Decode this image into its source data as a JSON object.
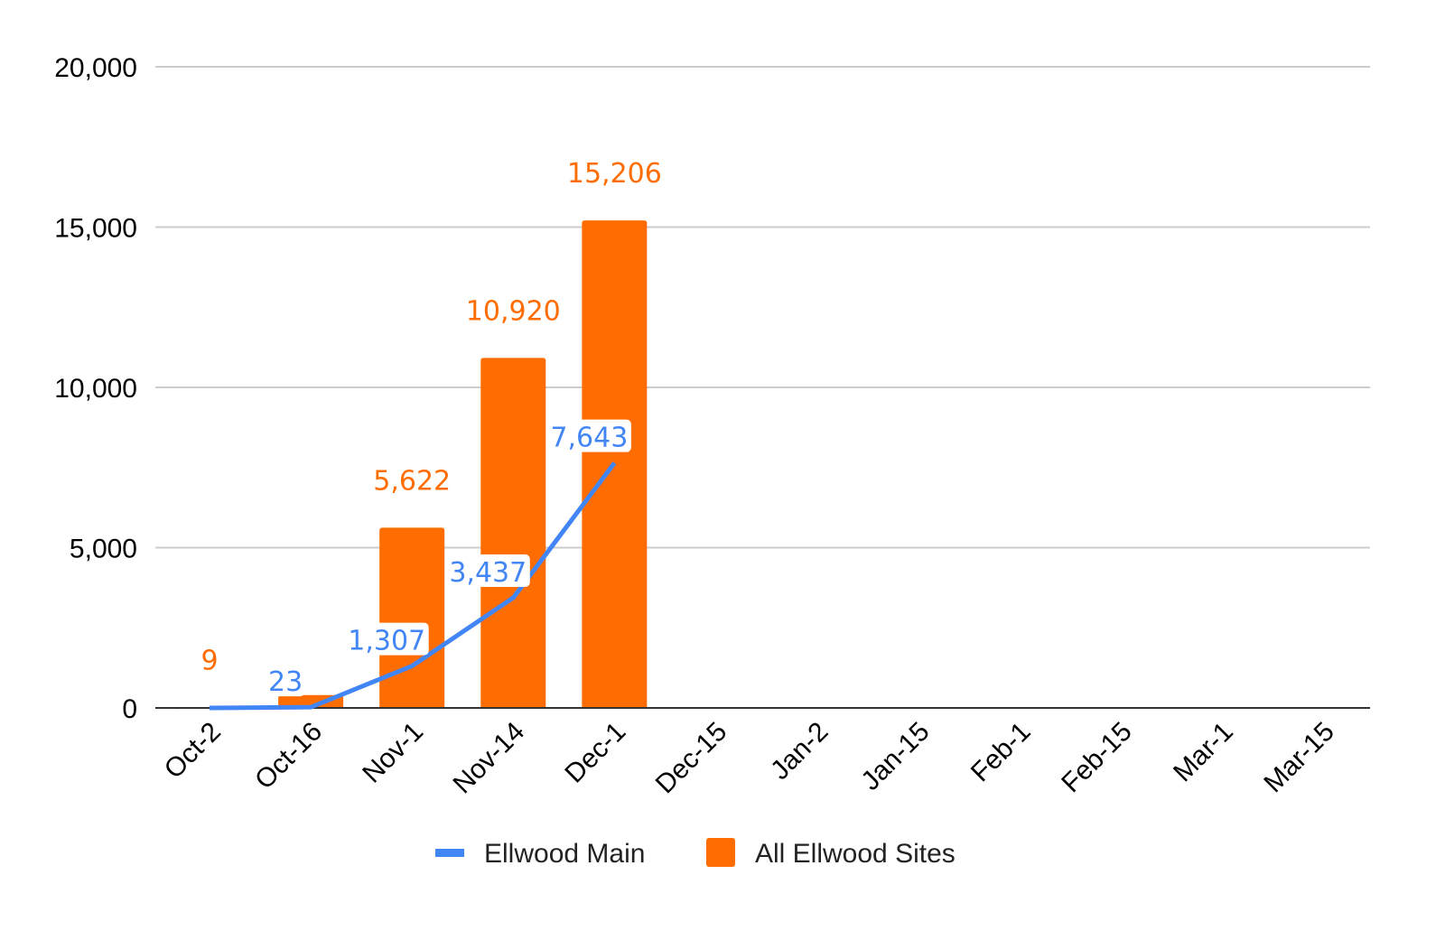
{
  "chart_data": {
    "type": "bar",
    "title": "",
    "xlabel": "",
    "ylabel": "",
    "ylim": [
      0,
      20000
    ],
    "yticks": [
      "0",
      "5,000",
      "10,000",
      "15,000",
      "20,000"
    ],
    "ytick_values": [
      0,
      5000,
      10000,
      15000,
      20000
    ],
    "grid": true,
    "legend": "bottom",
    "categories": [
      "Oct-2",
      "Oct-16",
      "Nov-1",
      "Nov-14",
      "Dec-1",
      "Dec-15",
      "Jan-2",
      "Jan-15",
      "Feb-1",
      "Feb-15",
      "Mar-1",
      "Mar-15"
    ],
    "series": [
      {
        "name": "All Ellwood Sites",
        "type": "bar",
        "color": "#ff6d01",
        "values": [
          9,
          400,
          5622,
          10920,
          15206,
          null,
          null,
          null,
          null,
          null,
          null,
          null
        ],
        "labels": [
          "9",
          "",
          "5,622",
          "10,920",
          "15,206",
          "",
          "",
          "",
          "",
          "",
          "",
          ""
        ]
      },
      {
        "name": "Ellwood Main",
        "type": "line",
        "color": "#4285f4",
        "values": [
          0,
          23,
          1307,
          3437,
          7643,
          null,
          null,
          null,
          null,
          null,
          null,
          null
        ],
        "labels": [
          "",
          "23",
          "1,307",
          "3,437",
          "7,643",
          "",
          "",
          "",
          "",
          "",
          "",
          ""
        ]
      }
    ]
  }
}
